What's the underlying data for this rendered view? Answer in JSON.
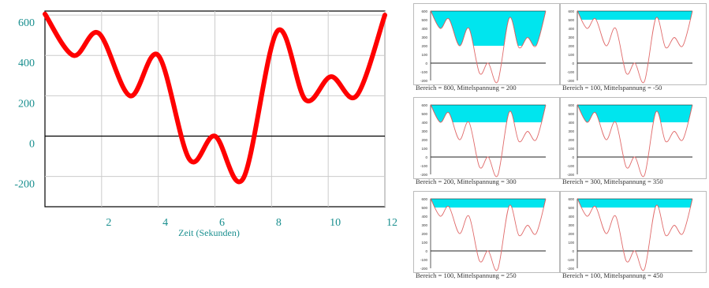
{
  "main_chart": {
    "chart_data": {
      "type": "line",
      "xlabel": "Zeit (Sekunden)",
      "ylabel": "",
      "xlim": [
        0,
        12
      ],
      "ylim": [
        -350,
        620
      ],
      "x_ticks": [
        2,
        4,
        6,
        8,
        10,
        12
      ],
      "y_ticks": [
        600,
        400,
        200,
        0,
        -200
      ],
      "grid": true,
      "series": [
        {
          "color": "#ff0000",
          "x": [
            0,
            1,
            1.9,
            3,
            4,
            5.1,
            6,
            7,
            8.2,
            9.2,
            10.1,
            11,
            12
          ],
          "y": [
            605,
            400,
            510,
            200,
            400,
            -115,
            0,
            -210,
            520,
            180,
            295,
            200,
            600
          ]
        }
      ]
    }
  },
  "panels": [
    {
      "caption": "Bereich = 800, Mittelspannung = 200",
      "threshold": 200,
      "range": 800
    },
    {
      "caption": "Bereich = 100, Mittelspannung = -50",
      "threshold": 500,
      "range": 100
    },
    {
      "caption": "Bereich = 200, Mittelspannung = 300",
      "threshold": 400,
      "range": 200
    },
    {
      "caption": "Bereich = 300, Mittelspannung = 350",
      "threshold": 400,
      "range": 300
    },
    {
      "caption": "Bereich = 100, Mittelspannung = 250",
      "threshold": 500,
      "range": 100
    },
    {
      "caption": "Bereich = 100, Mittelspannung = 450",
      "threshold": 500,
      "range": 100
    }
  ],
  "panel_axis": {
    "y_ticks": [
      "600",
      "500",
      "400",
      "300",
      "200",
      "100",
      "0",
      "-100",
      "-200"
    ]
  },
  "colors": {
    "line": "#ff0000",
    "panel_line": "#e06a6a",
    "fill": "#00e5ee",
    "axis_text": "#1a8f8f",
    "grid": "#cccccc"
  }
}
